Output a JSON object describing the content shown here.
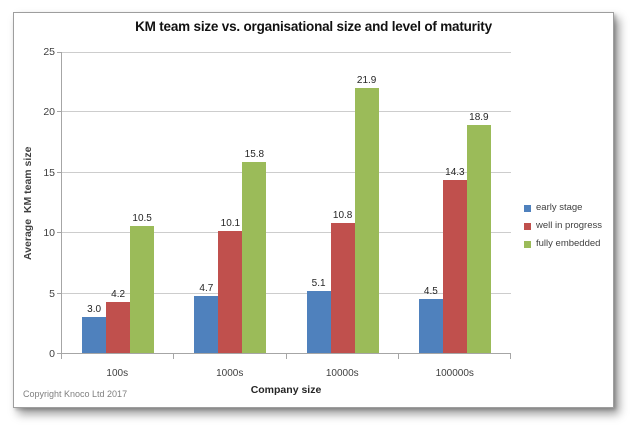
{
  "copyright": "Copyright Knoco Ltd 2017",
  "chart_data": {
    "type": "bar",
    "title": "KM team size vs. organisational size and level of maturity",
    "xlabel": "Company size",
    "ylabel": "Average  KM team size",
    "categories": [
      "100s",
      "1000s",
      "10000s",
      "100000s"
    ],
    "series": [
      {
        "name": "early stage",
        "color": "#4F81BD",
        "values": [
          3.0,
          4.7,
          5.1,
          4.5
        ]
      },
      {
        "name": "well in progress",
        "color": "#C0504D",
        "values": [
          4.2,
          10.1,
          10.8,
          14.3
        ]
      },
      {
        "name": "fully embedded",
        "color": "#9BBB59",
        "values": [
          10.5,
          15.8,
          21.9,
          18.9
        ]
      }
    ],
    "ylim": [
      0,
      25
    ],
    "ytick_step": 5,
    "grid": true,
    "legend_position": "right",
    "data_labels": true,
    "data_label_format": "0.0"
  },
  "style": {
    "grid_color": "#cdcdcd",
    "axis_color": "#a6a6a6",
    "label_color": "#3f3f3f",
    "copyright_color": "#7f7f7f"
  }
}
